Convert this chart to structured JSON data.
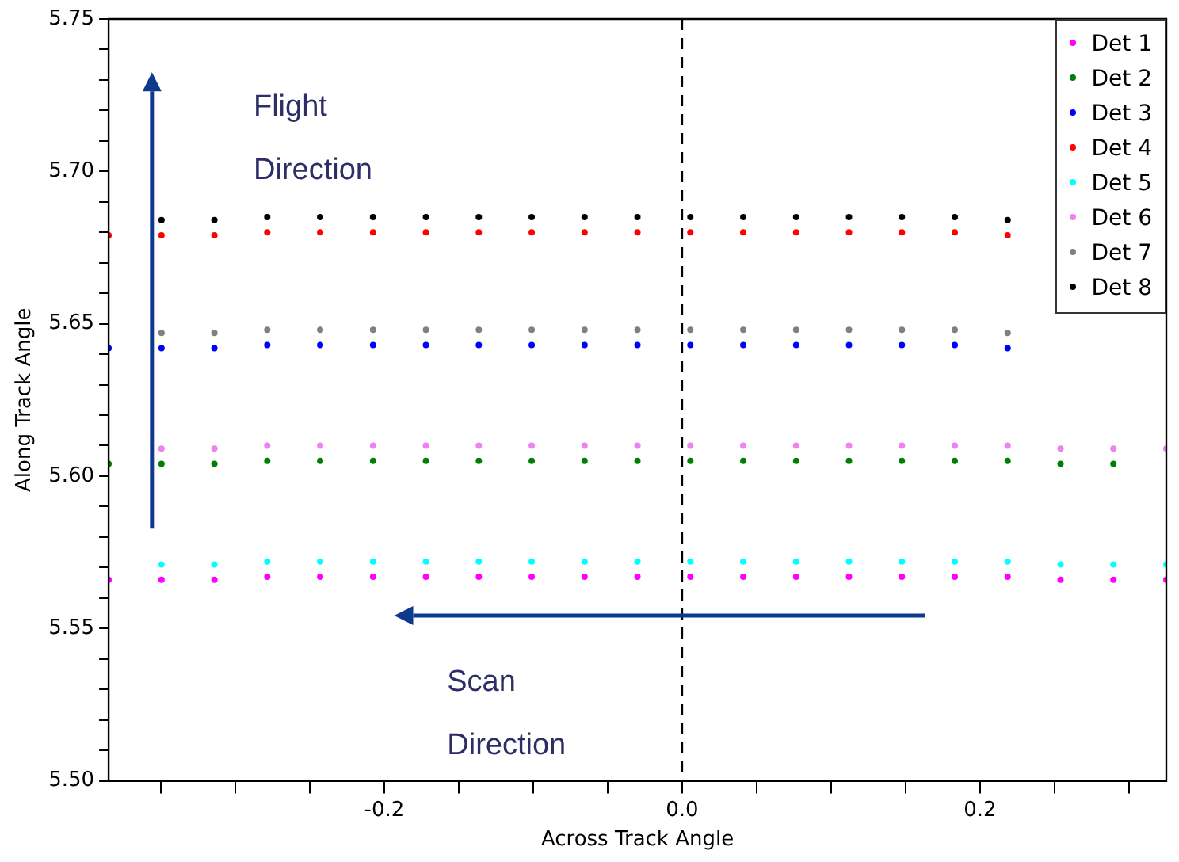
{
  "chart_data": {
    "type": "scatter",
    "xlabel": "Across Track Angle",
    "ylabel": "Along Track Angle",
    "x": [
      -0.385,
      -0.3495,
      -0.314,
      -0.2785,
      -0.243,
      -0.2075,
      -0.172,
      -0.1365,
      -0.101,
      -0.0655,
      -0.03,
      0.0055,
      0.041,
      0.0765,
      0.112,
      0.1475,
      0.183,
      0.2185,
      0.254,
      0.2895,
      0.325
    ],
    "series": [
      {
        "name": "Det 1",
        "color": "#ff00ff",
        "values": [
          5.566,
          5.566,
          5.566,
          5.567,
          5.567,
          5.567,
          5.567,
          5.567,
          5.567,
          5.567,
          5.567,
          5.567,
          5.567,
          5.567,
          5.567,
          5.567,
          5.567,
          5.567,
          5.566,
          5.566,
          5.566
        ]
      },
      {
        "name": "Det 2",
        "color": "#008000",
        "values": [
          5.604,
          5.604,
          5.604,
          5.605,
          5.605,
          5.605,
          5.605,
          5.605,
          5.605,
          5.605,
          5.605,
          5.605,
          5.605,
          5.605,
          5.605,
          5.605,
          5.605,
          5.605,
          5.604,
          5.604,
          null
        ]
      },
      {
        "name": "Det 3",
        "color": "#0000ff",
        "values": [
          5.642,
          5.642,
          5.642,
          5.643,
          5.643,
          5.643,
          5.643,
          5.643,
          5.643,
          5.643,
          5.643,
          5.643,
          5.643,
          5.643,
          5.643,
          5.643,
          5.643,
          5.642,
          null,
          null,
          null
        ]
      },
      {
        "name": "Det 4",
        "color": "#ff0000",
        "values": [
          5.679,
          5.679,
          5.679,
          5.68,
          5.68,
          5.68,
          5.68,
          5.68,
          5.68,
          5.68,
          5.68,
          5.68,
          5.68,
          5.68,
          5.68,
          5.68,
          5.68,
          5.679,
          null,
          null,
          null
        ]
      },
      {
        "name": "Det 5",
        "color": "#00ffff",
        "values": [
          null,
          5.571,
          5.571,
          5.572,
          5.572,
          5.572,
          5.572,
          5.572,
          5.572,
          5.572,
          5.572,
          5.572,
          5.572,
          5.572,
          5.572,
          5.572,
          5.572,
          5.572,
          5.571,
          5.571,
          5.571
        ]
      },
      {
        "name": "Det 6",
        "color": "#ee82ee",
        "values": [
          null,
          5.609,
          5.609,
          5.61,
          5.61,
          5.61,
          5.61,
          5.61,
          5.61,
          5.61,
          5.61,
          5.61,
          5.61,
          5.61,
          5.61,
          5.61,
          5.61,
          5.61,
          5.609,
          5.609,
          5.609
        ]
      },
      {
        "name": "Det 7",
        "color": "#808080",
        "values": [
          null,
          5.647,
          5.647,
          5.648,
          5.648,
          5.648,
          5.648,
          5.648,
          5.648,
          5.648,
          5.648,
          5.648,
          5.648,
          5.648,
          5.648,
          5.648,
          5.648,
          5.647,
          null,
          null,
          null
        ]
      },
      {
        "name": "Det 8",
        "color": "#000000",
        "values": [
          null,
          5.684,
          5.684,
          5.685,
          5.685,
          5.685,
          5.685,
          5.685,
          5.685,
          5.685,
          5.685,
          5.685,
          5.685,
          5.685,
          5.685,
          5.685,
          5.685,
          5.684,
          null,
          null,
          null
        ]
      }
    ],
    "xlim": [
      -0.385,
      0.325
    ],
    "xticks": [
      {
        "value": -0.35,
        "label": null
      },
      {
        "value": -0.3,
        "label": null
      },
      {
        "value": -0.25,
        "label": null
      },
      {
        "value": -0.2,
        "label": "-0.2"
      },
      {
        "value": -0.15,
        "label": null
      },
      {
        "value": -0.1,
        "label": null
      },
      {
        "value": -0.05,
        "label": null
      },
      {
        "value": 0,
        "label": "0.0"
      },
      {
        "value": 0.05,
        "label": null
      },
      {
        "value": 0.1,
        "label": null
      },
      {
        "value": 0.15,
        "label": null
      },
      {
        "value": 0.2,
        "label": "0.2"
      },
      {
        "value": 0.25,
        "label": null
      },
      {
        "value": 0.3,
        "label": null
      }
    ],
    "ylim": [
      5.5,
      5.75
    ],
    "yticks": [
      {
        "value": 5.5,
        "label": "5.50"
      },
      {
        "value": 5.51,
        "label": null
      },
      {
        "value": 5.52,
        "label": null
      },
      {
        "value": 5.53,
        "label": null
      },
      {
        "value": 5.54,
        "label": null
      },
      {
        "value": 5.55,
        "label": "5.55"
      },
      {
        "value": 5.56,
        "label": null
      },
      {
        "value": 5.57,
        "label": null
      },
      {
        "value": 5.58,
        "label": null
      },
      {
        "value": 5.59,
        "label": null
      },
      {
        "value": 5.6,
        "label": "5.60"
      },
      {
        "value": 5.61,
        "label": null
      },
      {
        "value": 5.62,
        "label": null
      },
      {
        "value": 5.63,
        "label": null
      },
      {
        "value": 5.64,
        "label": null
      },
      {
        "value": 5.65,
        "label": "5.65"
      },
      {
        "value": 5.66,
        "label": null
      },
      {
        "value": 5.67,
        "label": null
      },
      {
        "value": 5.68,
        "label": null
      },
      {
        "value": 5.69,
        "label": null
      },
      {
        "value": 5.7,
        "label": "5.70"
      },
      {
        "value": 5.71,
        "label": null
      },
      {
        "value": 5.72,
        "label": null
      },
      {
        "value": 5.73,
        "label": null
      },
      {
        "value": 5.74,
        "label": null
      },
      {
        "value": 5.75,
        "label": "5.75"
      }
    ],
    "ref_lines": [
      {
        "axis": "x",
        "value": 0,
        "color": "#000000",
        "line_style": "dashed"
      }
    ],
    "annotations": [
      "Flight Direction",
      "Scan Direction"
    ],
    "grid": false,
    "legend": "top right",
    "marker": "circle"
  }
}
